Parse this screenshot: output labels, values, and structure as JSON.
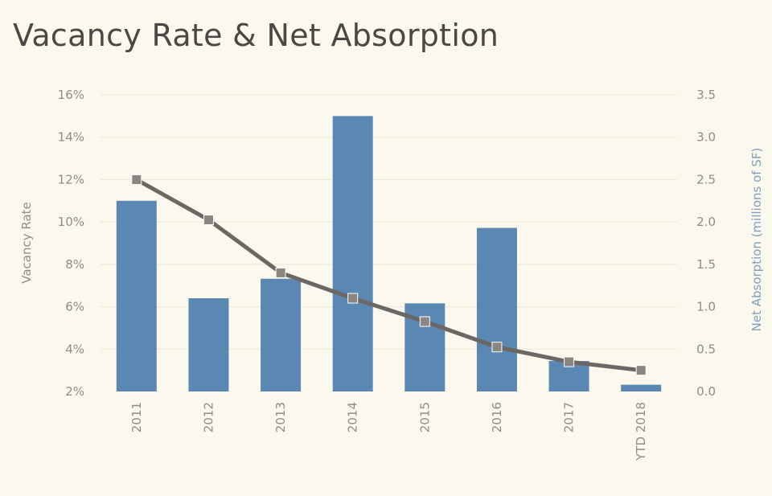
{
  "chart_data": {
    "type": "bar+line",
    "title": "Vacancy Rate & Net Absorption",
    "categories": [
      "2011",
      "2012",
      "2013",
      "2014",
      "2015",
      "2016",
      "2017",
      "YTD 2018"
    ],
    "series": [
      {
        "name": "Net Absorption",
        "type": "bar",
        "axis": "right",
        "values": [
          2.25,
          1.1,
          1.33,
          3.25,
          1.04,
          1.93,
          0.36,
          0.08
        ]
      },
      {
        "name": "Vacancy Rate",
        "type": "line",
        "axis": "left",
        "values": [
          12.0,
          10.1,
          7.6,
          6.4,
          5.3,
          4.1,
          3.4,
          3.0
        ]
      }
    ],
    "ylabel_left": "Vacancy Rate",
    "ylabel_right": "Net Absorption (millions of SF)",
    "ylim_left": [
      2,
      16
    ],
    "ylim_right": [
      0,
      3.5
    ],
    "yticks_left": [
      "2%",
      "4%",
      "6%",
      "8%",
      "10%",
      "12%",
      "14%",
      "16%"
    ],
    "yticks_right": [
      "0.0",
      "0.5",
      "1.0",
      "1.5",
      "2.0",
      "2.5",
      "3.0",
      "3.5"
    ],
    "colors": {
      "bar": "#5b88b3",
      "line": "#6b6764",
      "marker": "#8a8682",
      "grid": "#ece6d4",
      "background": "#fbf8ee"
    }
  }
}
